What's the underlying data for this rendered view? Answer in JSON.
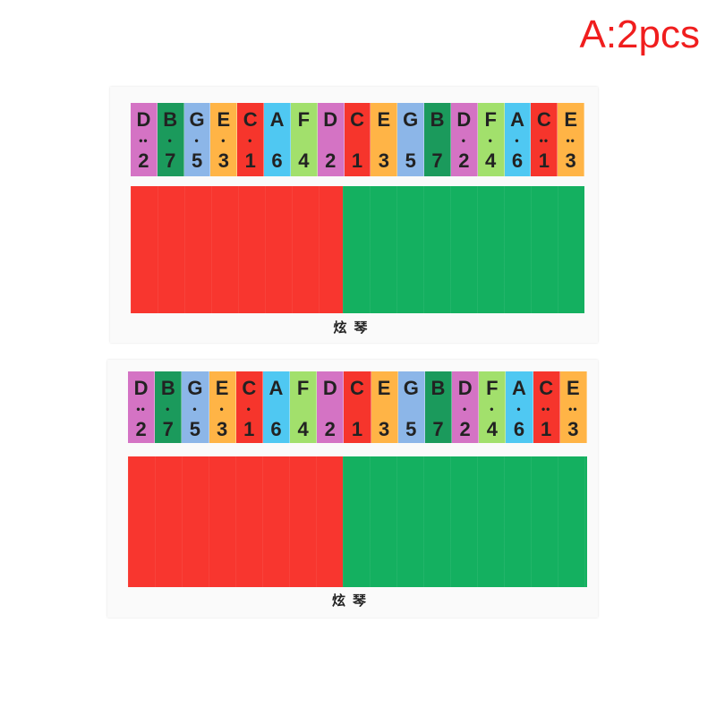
{
  "badge": "A:2pcs",
  "label": "炫琴",
  "keys": [
    {
      "note": "D",
      "dots": "••",
      "num": "2",
      "color": "#d473c4"
    },
    {
      "note": "B",
      "dots": "•",
      "num": "7",
      "color": "#1b9a5c"
    },
    {
      "note": "G",
      "dots": "•",
      "num": "5",
      "color": "#8cb6e8"
    },
    {
      "note": "E",
      "dots": "•",
      "num": "3",
      "color": "#ffb446"
    },
    {
      "note": "C",
      "dots": "•",
      "num": "1",
      "color": "#f6352c"
    },
    {
      "note": "A",
      "dots": "",
      "num": "6",
      "color": "#4fc8f2"
    },
    {
      "note": "F",
      "dots": "",
      "num": "4",
      "color": "#a2e06c"
    },
    {
      "note": "D",
      "dots": "",
      "num": "2",
      "color": "#d473c4"
    },
    {
      "note": "C",
      "dots": "",
      "num": "1",
      "color": "#f6352c"
    },
    {
      "note": "E",
      "dots": "",
      "num": "3",
      "color": "#ffb446"
    },
    {
      "note": "G",
      "dots": "",
      "num": "5",
      "color": "#8cb6e8"
    },
    {
      "note": "B",
      "dots": "",
      "num": "7",
      "color": "#1b9a5c"
    },
    {
      "note": "D",
      "dots": "•",
      "num": "2",
      "color": "#d473c4"
    },
    {
      "note": "F",
      "dots": "•",
      "num": "4",
      "color": "#a2e06c"
    },
    {
      "note": "A",
      "dots": "•",
      "num": "6",
      "color": "#4fc8f2"
    },
    {
      "note": "C",
      "dots": "••",
      "num": "1",
      "color": "#f6352c"
    },
    {
      "note": "E",
      "dots": "••",
      "num": "3",
      "color": "#ffb446"
    }
  ]
}
